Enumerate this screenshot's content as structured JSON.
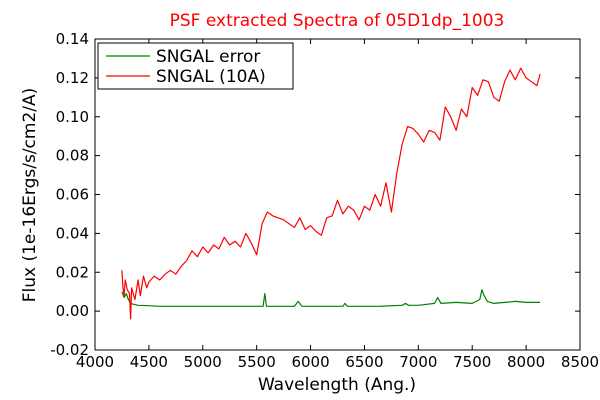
{
  "chart_data": {
    "type": "line",
    "title": "PSF extracted Spectra of 05D1dp_1003",
    "title_color": "#ff0000",
    "xlabel": "Wavelength (Ang.)",
    "ylabel": "Flux (1e-16Ergs/s/cm2/A)",
    "xlim": [
      4000,
      8500
    ],
    "ylim": [
      -0.02,
      0.14
    ],
    "xticks": [
      4000,
      4500,
      5000,
      5500,
      6000,
      6500,
      7000,
      7500,
      8000,
      8500
    ],
    "xtick_labels": [
      "4000",
      "4500",
      "5000",
      "5500",
      "6000",
      "6500",
      "7000",
      "7500",
      "8000",
      "8500"
    ],
    "yticks": [
      -0.02,
      0.0,
      0.02,
      0.04,
      0.06,
      0.08,
      0.1,
      0.12,
      0.14
    ],
    "ytick_labels": [
      "-0.02",
      "0.00",
      "0.02",
      "0.04",
      "0.06",
      "0.08",
      "0.10",
      "0.12",
      "0.14"
    ],
    "grid": false,
    "legend_position": "top-left",
    "series": [
      {
        "name": "SNGAL error",
        "color": "#008000",
        "x": [
          4250,
          4270,
          4290,
          4310,
          4330,
          4360,
          4400,
          4500,
          4600,
          4800,
          5000,
          5200,
          5400,
          5560,
          5575,
          5590,
          5700,
          5850,
          5885,
          5920,
          6100,
          6300,
          6320,
          6340,
          6500,
          6650,
          6850,
          6880,
          6910,
          7000,
          7150,
          7180,
          7210,
          7350,
          7500,
          7570,
          7590,
          7610,
          7640,
          7700,
          7800,
          7900,
          8000,
          8130
        ],
        "y": [
          0.01,
          0.007,
          0.009,
          0.006,
          0.004,
          0.0035,
          0.003,
          0.0028,
          0.0025,
          0.0025,
          0.0025,
          0.0025,
          0.0025,
          0.0025,
          0.009,
          0.0025,
          0.0025,
          0.0025,
          0.005,
          0.0025,
          0.0025,
          0.0025,
          0.004,
          0.0025,
          0.0025,
          0.0025,
          0.003,
          0.004,
          0.003,
          0.003,
          0.004,
          0.007,
          0.004,
          0.0045,
          0.004,
          0.006,
          0.011,
          0.008,
          0.005,
          0.004,
          0.0045,
          0.005,
          0.0045,
          0.0045
        ]
      },
      {
        "name": "SNGAL (10A)",
        "color": "#ff0000",
        "x": [
          4250,
          4260,
          4270,
          4280,
          4300,
          4320,
          4330,
          4340,
          4370,
          4400,
          4420,
          4450,
          4480,
          4500,
          4550,
          4600,
          4650,
          4700,
          4750,
          4800,
          4850,
          4900,
          4950,
          5000,
          5050,
          5100,
          5150,
          5200,
          5250,
          5300,
          5350,
          5400,
          5450,
          5500,
          5550,
          5600,
          5650,
          5700,
          5750,
          5800,
          5850,
          5900,
          5950,
          6000,
          6050,
          6100,
          6150,
          6200,
          6250,
          6300,
          6350,
          6400,
          6450,
          6500,
          6550,
          6600,
          6650,
          6700,
          6750,
          6800,
          6850,
          6900,
          6950,
          7000,
          7050,
          7100,
          7150,
          7200,
          7250,
          7300,
          7350,
          7400,
          7450,
          7500,
          7550,
          7600,
          7650,
          7700,
          7750,
          7800,
          7850,
          7900,
          7950,
          8000,
          8050,
          8100,
          8130
        ],
        "y": [
          0.021,
          0.012,
          0.008,
          0.016,
          0.011,
          0.009,
          -0.004,
          0.012,
          0.006,
          0.016,
          0.008,
          0.018,
          0.012,
          0.015,
          0.018,
          0.016,
          0.019,
          0.021,
          0.019,
          0.023,
          0.026,
          0.031,
          0.028,
          0.033,
          0.03,
          0.034,
          0.032,
          0.038,
          0.034,
          0.036,
          0.033,
          0.04,
          0.035,
          0.029,
          0.045,
          0.051,
          0.049,
          0.048,
          0.047,
          0.045,
          0.043,
          0.048,
          0.042,
          0.044,
          0.041,
          0.039,
          0.048,
          0.049,
          0.057,
          0.05,
          0.054,
          0.052,
          0.047,
          0.054,
          0.052,
          0.06,
          0.054,
          0.066,
          0.051,
          0.071,
          0.086,
          0.095,
          0.094,
          0.091,
          0.087,
          0.093,
          0.092,
          0.088,
          0.105,
          0.1,
          0.093,
          0.104,
          0.1,
          0.115,
          0.111,
          0.119,
          0.118,
          0.11,
          0.108,
          0.118,
          0.124,
          0.119,
          0.125,
          0.12,
          0.118,
          0.116,
          0.122
        ]
      }
    ]
  }
}
